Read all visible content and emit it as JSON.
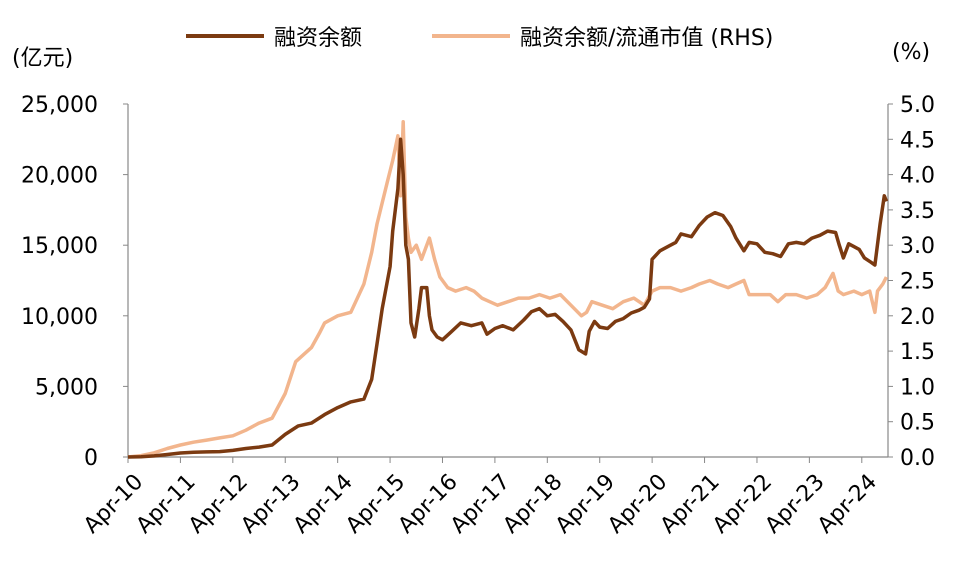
{
  "units": {
    "left": "(亿元)",
    "right": "(%)"
  },
  "legend": [
    {
      "label": "融资余额",
      "color": "#7b3a11"
    },
    {
      "label": "融资余额/流通市值 (RHS)",
      "color": "#f2b58d"
    }
  ],
  "chart_data": {
    "type": "line",
    "x_tick_labels": [
      "Apr-10",
      "Apr-11",
      "Apr-12",
      "Apr-13",
      "Apr-14",
      "Apr-15",
      "Apr-16",
      "Apr-17",
      "Apr-18",
      "Apr-19",
      "Apr-20",
      "Apr-21",
      "Apr-22",
      "Apr-23",
      "Apr-24"
    ],
    "y_left": {
      "ticks": [
        "0",
        "5,000",
        "10,000",
        "15,000",
        "20,000",
        "25,000"
      ],
      "min": 0,
      "max": 25000
    },
    "y_right": {
      "ticks": [
        "0.0",
        "0.5",
        "1.0",
        "1.5",
        "2.0",
        "2.5",
        "3.0",
        "3.5",
        "4.0",
        "4.5",
        "5.0"
      ],
      "min": 0,
      "max": 5
    },
    "x_range": [
      2010.25,
      2024.75
    ],
    "series": [
      {
        "name": "融资余额",
        "axis": "left",
        "color": "#7b3a11",
        "points": [
          [
            2010.25,
            0
          ],
          [
            2010.5,
            20
          ],
          [
            2010.75,
            80
          ],
          [
            2011.0,
            180
          ],
          [
            2011.25,
            280
          ],
          [
            2011.5,
            330
          ],
          [
            2011.75,
            360
          ],
          [
            2012.0,
            380
          ],
          [
            2012.25,
            470
          ],
          [
            2012.5,
            600
          ],
          [
            2012.75,
            700
          ],
          [
            2013.0,
            850
          ],
          [
            2013.25,
            1600
          ],
          [
            2013.5,
            2200
          ],
          [
            2013.75,
            2400
          ],
          [
            2014.0,
            3000
          ],
          [
            2014.25,
            3500
          ],
          [
            2014.5,
            3900
          ],
          [
            2014.75,
            4100
          ],
          [
            2014.9,
            5500
          ],
          [
            2015.0,
            8000
          ],
          [
            2015.1,
            10500
          ],
          [
            2015.25,
            13500
          ],
          [
            2015.3,
            16000
          ],
          [
            2015.4,
            19000
          ],
          [
            2015.45,
            22500
          ],
          [
            2015.5,
            20000
          ],
          [
            2015.55,
            15000
          ],
          [
            2015.6,
            14000
          ],
          [
            2015.65,
            9500
          ],
          [
            2015.72,
            8500
          ],
          [
            2015.8,
            10500
          ],
          [
            2015.85,
            12000
          ],
          [
            2015.95,
            12000
          ],
          [
            2016.0,
            10000
          ],
          [
            2016.05,
            9000
          ],
          [
            2016.15,
            8500
          ],
          [
            2016.25,
            8300
          ],
          [
            2016.4,
            8800
          ],
          [
            2016.6,
            9500
          ],
          [
            2016.8,
            9300
          ],
          [
            2017.0,
            9500
          ],
          [
            2017.1,
            8700
          ],
          [
            2017.25,
            9100
          ],
          [
            2017.4,
            9300
          ],
          [
            2017.6,
            9000
          ],
          [
            2017.8,
            9700
          ],
          [
            2017.95,
            10300
          ],
          [
            2018.1,
            10500
          ],
          [
            2018.25,
            10000
          ],
          [
            2018.4,
            10100
          ],
          [
            2018.55,
            9600
          ],
          [
            2018.7,
            9000
          ],
          [
            2018.85,
            7600
          ],
          [
            2018.98,
            7300
          ],
          [
            2019.05,
            8900
          ],
          [
            2019.15,
            9600
          ],
          [
            2019.25,
            9200
          ],
          [
            2019.4,
            9100
          ],
          [
            2019.55,
            9600
          ],
          [
            2019.7,
            9800
          ],
          [
            2019.85,
            10200
          ],
          [
            2020.0,
            10400
          ],
          [
            2020.1,
            10600
          ],
          [
            2020.2,
            11200
          ],
          [
            2020.25,
            14000
          ],
          [
            2020.4,
            14600
          ],
          [
            2020.55,
            14900
          ],
          [
            2020.7,
            15200
          ],
          [
            2020.8,
            15800
          ],
          [
            2021.0,
            15600
          ],
          [
            2021.15,
            16400
          ],
          [
            2021.3,
            17000
          ],
          [
            2021.45,
            17300
          ],
          [
            2021.6,
            17100
          ],
          [
            2021.75,
            16300
          ],
          [
            2021.85,
            15500
          ],
          [
            2022.0,
            14600
          ],
          [
            2022.1,
            15200
          ],
          [
            2022.25,
            15100
          ],
          [
            2022.4,
            14500
          ],
          [
            2022.55,
            14400
          ],
          [
            2022.7,
            14200
          ],
          [
            2022.85,
            15100
          ],
          [
            2023.0,
            15200
          ],
          [
            2023.15,
            15100
          ],
          [
            2023.3,
            15500
          ],
          [
            2023.45,
            15700
          ],
          [
            2023.6,
            16000
          ],
          [
            2023.75,
            15900
          ],
          [
            2023.82,
            15000
          ],
          [
            2023.9,
            14100
          ],
          [
            2024.0,
            15100
          ],
          [
            2024.1,
            14900
          ],
          [
            2024.2,
            14700
          ],
          [
            2024.3,
            14100
          ],
          [
            2024.42,
            13800
          ],
          [
            2024.5,
            13600
          ],
          [
            2024.6,
            16500
          ],
          [
            2024.68,
            18500
          ],
          [
            2024.72,
            18100
          ]
        ]
      },
      {
        "name": "融资余额/流通市值 (RHS)",
        "axis": "right",
        "color": "#f2b58d",
        "points": [
          [
            2010.25,
            0
          ],
          [
            2010.5,
            0.02
          ],
          [
            2010.75,
            0.06
          ],
          [
            2011.0,
            0.12
          ],
          [
            2011.25,
            0.17
          ],
          [
            2011.5,
            0.21
          ],
          [
            2011.75,
            0.24
          ],
          [
            2012.0,
            0.27
          ],
          [
            2012.25,
            0.3
          ],
          [
            2012.5,
            0.38
          ],
          [
            2012.75,
            0.48
          ],
          [
            2013.0,
            0.55
          ],
          [
            2013.25,
            0.9
          ],
          [
            2013.45,
            1.35
          ],
          [
            2013.6,
            1.45
          ],
          [
            2013.75,
            1.55
          ],
          [
            2013.9,
            1.75
          ],
          [
            2014.0,
            1.9
          ],
          [
            2014.25,
            2.0
          ],
          [
            2014.5,
            2.05
          ],
          [
            2014.75,
            2.45
          ],
          [
            2014.9,
            2.9
          ],
          [
            2015.0,
            3.3
          ],
          [
            2015.1,
            3.6
          ],
          [
            2015.2,
            3.9
          ],
          [
            2015.3,
            4.2
          ],
          [
            2015.4,
            4.55
          ],
          [
            2015.45,
            3.7
          ],
          [
            2015.5,
            4.75
          ],
          [
            2015.55,
            3.4
          ],
          [
            2015.6,
            3.1
          ],
          [
            2015.65,
            2.9
          ],
          [
            2015.75,
            3.0
          ],
          [
            2015.85,
            2.8
          ],
          [
            2016.0,
            3.1
          ],
          [
            2016.1,
            2.8
          ],
          [
            2016.2,
            2.55
          ],
          [
            2016.35,
            2.4
          ],
          [
            2016.5,
            2.35
          ],
          [
            2016.7,
            2.4
          ],
          [
            2016.85,
            2.35
          ],
          [
            2017.0,
            2.25
          ],
          [
            2017.15,
            2.2
          ],
          [
            2017.3,
            2.15
          ],
          [
            2017.5,
            2.2
          ],
          [
            2017.7,
            2.25
          ],
          [
            2017.9,
            2.25
          ],
          [
            2018.1,
            2.3
          ],
          [
            2018.3,
            2.25
          ],
          [
            2018.5,
            2.3
          ],
          [
            2018.7,
            2.15
          ],
          [
            2018.9,
            2.0
          ],
          [
            2019.0,
            2.05
          ],
          [
            2019.1,
            2.2
          ],
          [
            2019.3,
            2.15
          ],
          [
            2019.5,
            2.1
          ],
          [
            2019.7,
            2.2
          ],
          [
            2019.9,
            2.25
          ],
          [
            2020.1,
            2.15
          ],
          [
            2020.25,
            2.35
          ],
          [
            2020.4,
            2.4
          ],
          [
            2020.6,
            2.4
          ],
          [
            2020.8,
            2.35
          ],
          [
            2021.0,
            2.4
          ],
          [
            2021.15,
            2.45
          ],
          [
            2021.35,
            2.5
          ],
          [
            2021.5,
            2.45
          ],
          [
            2021.7,
            2.4
          ],
          [
            2021.85,
            2.45
          ],
          [
            2022.0,
            2.5
          ],
          [
            2022.1,
            2.3
          ],
          [
            2022.3,
            2.3
          ],
          [
            2022.5,
            2.3
          ],
          [
            2022.65,
            2.2
          ],
          [
            2022.8,
            2.3
          ],
          [
            2023.0,
            2.3
          ],
          [
            2023.2,
            2.25
          ],
          [
            2023.4,
            2.3
          ],
          [
            2023.55,
            2.4
          ],
          [
            2023.7,
            2.6
          ],
          [
            2023.8,
            2.35
          ],
          [
            2023.9,
            2.3
          ],
          [
            2024.1,
            2.35
          ],
          [
            2024.25,
            2.3
          ],
          [
            2024.4,
            2.35
          ],
          [
            2024.5,
            2.05
          ],
          [
            2024.55,
            2.35
          ],
          [
            2024.65,
            2.45
          ],
          [
            2024.72,
            2.55
          ]
        ]
      }
    ]
  }
}
